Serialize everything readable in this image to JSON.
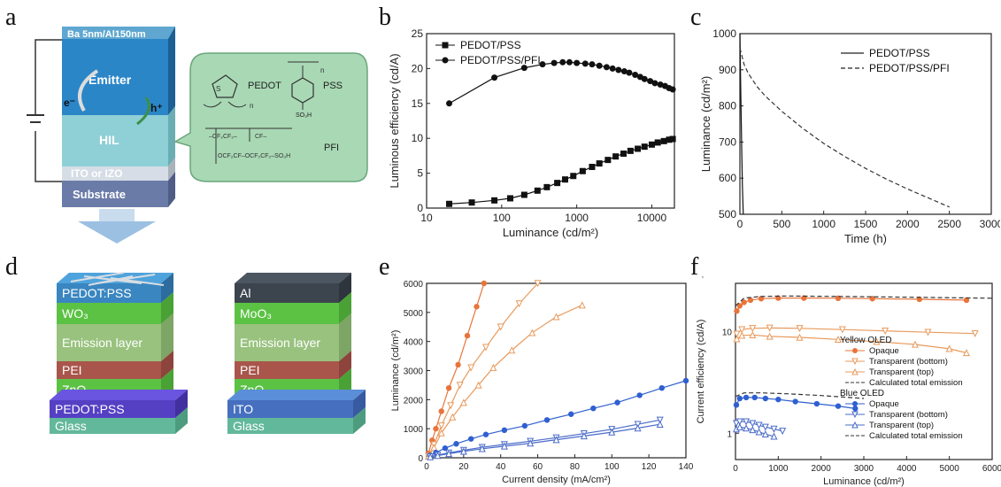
{
  "panels": {
    "a": {
      "letter": "a",
      "layers": {
        "cathode": "Ba 5nm/Al150nm",
        "emitter": "Emitter",
        "hil": "HIL",
        "ito": "ITO or IZO",
        "substrate": "Substrate"
      },
      "carriers": {
        "electron": "e⁻",
        "hole": "h⁺"
      },
      "chem": {
        "pedot": "PEDOT",
        "pss": "PSS",
        "pfi": "PFI",
        "so3h": "SO₃H",
        "n": "n"
      },
      "colors": {
        "emitter": "#2b86c8",
        "hil": "#8fd0d6",
        "bubble": "#a8d8b4"
      }
    },
    "b": {
      "letter": "b",
      "chart_data": {
        "type": "line",
        "xlabel": "Luminance (cd/m²)",
        "ylabel": "Luminous efficiency (cd/A)",
        "xscale": "log",
        "xlim": [
          10,
          20000
        ],
        "ylim": [
          0,
          25
        ],
        "xticks": [
          10,
          100,
          1000,
          10000
        ],
        "xticklabels": [
          "10",
          "100",
          "1000",
          "10000"
        ],
        "yticks": [
          0,
          5,
          10,
          15,
          20,
          25
        ],
        "legend_position": "top-left",
        "series": [
          {
            "name": "PEDOT/PSS",
            "marker": "square",
            "x": [
              20,
              40,
              80,
              130,
              200,
              300,
              400,
              550,
              700,
              900,
              1200,
              1600,
              2000,
              2600,
              3300,
              4200,
              5200,
              6500,
              8000,
              10000,
              12000,
              14500,
              17000,
              19000
            ],
            "y": [
              0.6,
              0.8,
              1.1,
              1.4,
              1.9,
              2.5,
              3.0,
              3.6,
              4.1,
              4.6,
              5.3,
              5.9,
              6.4,
              6.9,
              7.4,
              7.8,
              8.2,
              8.5,
              8.8,
              9.1,
              9.4,
              9.6,
              9.8,
              9.9
            ]
          },
          {
            "name": "PEDOT/PSS/PFI",
            "marker": "circle",
            "x": [
              20,
              80,
              200,
              350,
              500,
              650,
              800,
              1000,
              1300,
              1600,
              2000,
              2500,
              3000,
              3600,
              4300,
              5000,
              6000,
              7000,
              8000,
              9500,
              11000,
              13000,
              15000,
              17000,
              19000
            ],
            "y": [
              15.0,
              18.7,
              20.1,
              20.6,
              20.8,
              20.9,
              20.9,
              20.8,
              20.7,
              20.6,
              20.4,
              20.2,
              20.0,
              19.8,
              19.6,
              19.4,
              19.1,
              18.8,
              18.5,
              18.2,
              17.9,
              17.7,
              17.5,
              17.2,
              17.0
            ]
          }
        ]
      }
    },
    "c": {
      "letter": "c",
      "chart_data": {
        "type": "line",
        "xlabel": "Time (h)",
        "ylabel": "Luminance (cd/m²)",
        "xlim": [
          0,
          3000
        ],
        "ylim": [
          500,
          1000
        ],
        "xticks": [
          0,
          500,
          1000,
          1500,
          2000,
          2500,
          3000
        ],
        "yticks": [
          500,
          600,
          700,
          800,
          900,
          1000
        ],
        "legend_position": "top-right",
        "series": [
          {
            "name": "PEDOT/PSS",
            "style": "solid",
            "x": [
              0,
              10,
              20,
              30,
              40
            ],
            "y": [
              1000,
              850,
              700,
              580,
              500
            ]
          },
          {
            "name": "PEDOT/PSS/PFI",
            "style": "dashed",
            "x": [
              0,
              50,
              100,
              200,
              300,
              500,
              750,
              1000,
              1250,
              1500,
              1750,
              2000,
              2250,
              2500,
              2750
            ],
            "y": [
              960,
              915,
              890,
              855,
              828,
              785,
              738,
              696,
              660,
              627,
              597,
              570,
              545,
              520,
              497
            ]
          }
        ]
      }
    },
    "d": {
      "letter": "d",
      "left_stack": [
        "PEDOT:PSS",
        "WO₃",
        "Emission layer",
        "PEI",
        "ZnO",
        "PEDOT:PSS",
        "Glass"
      ],
      "right_stack": [
        "Al",
        "MoO₃",
        "Emission layer",
        "PEI",
        "ZnO",
        "ITO",
        "Glass"
      ]
    },
    "e": {
      "letter": "e",
      "chart_data": {
        "type": "line",
        "xlabel": "Current density (mA/cm²)",
        "ylabel": "Luminance (cd/m²)",
        "xlim": [
          0,
          140
        ],
        "ylim": [
          0,
          6000
        ],
        "xticks": [
          0,
          20,
          40,
          60,
          80,
          100,
          120,
          140
        ],
        "yticks": [
          0,
          1000,
          2000,
          3000,
          4000,
          5000,
          6000
        ],
        "series": [
          {
            "name": "Yellow opaque",
            "color": "#e8743b",
            "marker": "circle",
            "x": [
              1,
              3,
              5,
              8,
              12,
              17,
              22,
              27,
              31
            ],
            "y": [
              150,
              600,
              1000,
              1600,
              2400,
              3200,
              4200,
              5200,
              6000
            ]
          },
          {
            "name": "Yellow transparent (bottom)",
            "color": "#e89a5c",
            "marker": "tri-down",
            "x": [
              1,
              4,
              8,
              13,
              18,
              24,
              32,
              40,
              50,
              60
            ],
            "y": [
              60,
              450,
              1100,
              1800,
              2500,
              3100,
              3800,
              4500,
              5300,
              6000
            ]
          },
          {
            "name": "Yellow transparent (top)",
            "color": "#e89a5c",
            "marker": "tri-up",
            "x": [
              1,
              4,
              8,
              14,
              20,
              28,
              36,
              46,
              57,
              70,
              84
            ],
            "y": [
              50,
              350,
              850,
              1400,
              1900,
              2500,
              3100,
              3700,
              4300,
              4850,
              5250
            ]
          },
          {
            "name": "Blue opaque",
            "color": "#2f5fd0",
            "marker": "circle",
            "x": [
              2,
              5,
              10,
              16,
              24,
              32,
              42,
              53,
              65,
              78,
              90,
              103,
              115,
              127,
              140
            ],
            "y": [
              80,
              180,
              330,
              480,
              650,
              800,
              950,
              1100,
              1300,
              1500,
              1700,
              1900,
              2150,
              2400,
              2650
            ]
          },
          {
            "name": "Blue transparent (bottom)",
            "color": "#4a6bc9",
            "marker": "tri-down",
            "x": [
              2,
              6,
              12,
              20,
              30,
              42,
              56,
              70,
              85,
              100,
              114,
              126
            ],
            "y": [
              40,
              90,
              170,
              260,
              360,
              460,
              570,
              690,
              830,
              980,
              1150,
              1300
            ]
          },
          {
            "name": "Blue transparent (top)",
            "color": "#4a6bc9",
            "marker": "tri-up",
            "x": [
              2,
              6,
              12,
              20,
              30,
              42,
              56,
              70,
              85,
              100,
              114,
              126
            ],
            "y": [
              30,
              75,
              140,
              220,
              310,
              400,
              500,
              620,
              750,
              880,
              1020,
              1150
            ]
          }
        ]
      }
    },
    "f": {
      "letter": "f",
      "tiny_mark": "'",
      "chart_data": {
        "type": "line",
        "xlabel": "Luminance (cd/m²)",
        "ylabel": "Current efficiency (cd/A)",
        "yscale": "log",
        "xlim": [
          0,
          6000
        ],
        "ylim": [
          0.55,
          30
        ],
        "xticks": [
          0,
          1000,
          2000,
          3000,
          4000,
          5000,
          6000
        ],
        "yticks": [
          1,
          10
        ],
        "legend_position": "right",
        "legend_groups": [
          "Yellow OLED",
          "Blue OLED"
        ],
        "series": [
          {
            "name": "Opaque",
            "group": "Yellow OLED",
            "color": "#e8743b",
            "marker": "circle",
            "x": [
              30,
              100,
              200,
              350,
              600,
              1000,
              1600,
              2400,
              3200,
              4300,
              5400
            ],
            "y": [
              16,
              18,
              19.5,
              20.5,
              21.2,
              21.5,
              21.5,
              21.4,
              21.2,
              20.9,
              20.5
            ]
          },
          {
            "name": "Transparent (bottom)",
            "color": "#e89a5c",
            "marker": "tri-down",
            "x": [
              30,
              150,
              400,
              800,
              1500,
              2500,
              3500,
              4500,
              5600
            ],
            "y": [
              9.5,
              10.5,
              10.8,
              10.9,
              10.8,
              10.5,
              10.2,
              9.9,
              9.6
            ]
          },
          {
            "name": "Transparent (top)",
            "color": "#e89a5c",
            "marker": "tri-up",
            "x": [
              30,
              150,
              400,
              800,
              1500,
              2400,
              3300,
              4200,
              5000,
              5400
            ],
            "y": [
              8.5,
              9.2,
              9.3,
              9.0,
              8.8,
              8.4,
              8.0,
              7.5,
              6.8,
              6.2
            ]
          },
          {
            "name": "Calculated total emission",
            "style": "dashed",
            "x": [
              0,
              200,
              600,
              1200,
              2400,
              3600,
              4800,
              6000
            ],
            "y": [
              18,
              21.5,
              22.3,
              22.5,
              22.3,
              22.0,
              21.7,
              21.4
            ]
          },
          {
            "name": "Opaque",
            "group": "Blue OLED",
            "color": "#2f5fd0",
            "marker": "circle",
            "x": [
              20,
              100,
              250,
              450,
              700,
              1000,
              1400,
              1900,
              2400,
              2800
            ],
            "y": [
              1.9,
              2.2,
              2.25,
              2.25,
              2.2,
              2.15,
              2.05,
              1.95,
              1.85,
              1.75
            ]
          },
          {
            "name": "Transparent (bottom)",
            "color": "#4a6bc9",
            "marker": "tri-down",
            "x": [
              20,
              100,
              250,
              400,
              550,
              700,
              900,
              1100
            ],
            "y": [
              1.25,
              1.3,
              1.3,
              1.25,
              1.2,
              1.15,
              1.1,
              1.05
            ]
          },
          {
            "name": "Transparent (top)",
            "color": "#4a6bc9",
            "marker": "tri-up",
            "x": [
              20,
              100,
              250,
              400,
              550,
              700,
              900
            ],
            "y": [
              1.1,
              1.15,
              1.12,
              1.08,
              1.03,
              0.98,
              0.93
            ]
          },
          {
            "name": "Calculated total emission",
            "style": "dashed",
            "x": [
              0,
              200,
              600,
              1200,
              2000,
              3000
            ],
            "y": [
              2.3,
              2.5,
              2.5,
              2.45,
              2.35,
              2.2
            ]
          }
        ]
      }
    }
  }
}
